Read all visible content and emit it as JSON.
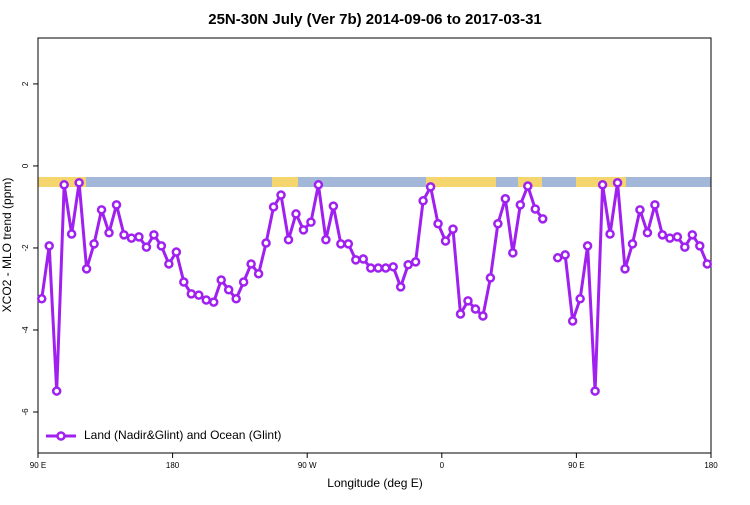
{
  "chart_data": {
    "type": "line",
    "title": "25N-30N July (Ver 7b)   2014-09-06 to 2017-03-31",
    "x_label": "Longitude (deg E)",
    "y_label": "XCO2 - MLO trend (ppm)",
    "xlim": [
      90,
      540
    ],
    "xticks": [
      {
        "value": 90,
        "label": "90 E"
      },
      180,
      {
        "value": 270,
        "label": "90 W"
      },
      {
        "value": 360,
        "label": "0"
      },
      {
        "value": 450,
        "label": "90 E"
      },
      {
        "value": 540,
        "label": "180"
      }
    ],
    "ylim": [
      -7,
      3.12
    ],
    "yticks": [
      -6,
      -4,
      -2,
      0,
      2
    ],
    "grid": false,
    "legend": "bottom-left",
    "x": [
      92.5,
      97.5,
      102.5,
      107.5,
      112.5,
      117.5,
      122.5,
      127.5,
      132.5,
      137.5,
      142.5,
      147.5,
      152.5,
      157.5,
      162.5,
      167.5,
      172.5,
      177.5,
      182.5,
      187.5,
      192.5,
      197.5,
      202.5,
      207.5,
      212.5,
      217.5,
      222.5,
      227.5,
      232.5,
      237.5,
      242.5,
      247.5,
      252.5,
      257.5,
      262.5,
      267.5,
      272.5,
      277.5,
      282.5,
      287.5,
      292.5,
      297.5,
      302.5,
      307.5,
      312.5,
      317.5,
      322.5,
      327.5,
      332.5,
      337.5,
      342.5,
      347.5,
      352.5,
      357.5,
      362.5,
      367.5,
      372.5,
      377.5,
      382.5,
      387.5,
      392.5,
      397.5,
      402.5,
      407.5,
      412.5,
      417.5,
      422.5,
      427.5,
      432.5,
      437.5,
      442.5,
      447.5,
      452.5,
      457.5,
      462.5,
      467.5,
      472.5,
      477.5,
      482.5,
      487.5,
      492.5,
      497.5,
      502.5,
      507.5,
      512.5,
      517.5,
      522.5,
      527.5,
      532.5,
      537.5
    ],
    "series": [
      {
        "name": "Land (Nadir&Glint) and Ocean (Glint)",
        "color": "#a020f0",
        "values": [
          -3.24,
          -1.95,
          -5.49,
          -0.46,
          -1.66,
          -0.41,
          -2.51,
          -1.9,
          -1.07,
          -1.63,
          -0.95,
          -1.68,
          -1.76,
          -1.73,
          -1.98,
          -1.68,
          -1.95,
          -2.39,
          -2.1,
          -2.83,
          -3.12,
          -3.15,
          -3.27,
          -3.32,
          -2.78,
          -3.02,
          -3.24,
          -2.83,
          -2.39,
          -2.63,
          -1.88,
          -1.0,
          -0.71,
          -1.8,
          -1.17,
          -1.56,
          -1.37,
          -0.46,
          -1.8,
          -0.98,
          -1.9,
          -1.9,
          -2.29,
          -2.27,
          -2.49,
          -2.49,
          -2.49,
          -2.46,
          -2.95,
          -2.41,
          -2.34,
          -0.85,
          -0.51,
          -1.41,
          -1.83,
          -1.54,
          -3.61,
          -3.29,
          -3.49,
          -3.66,
          -2.73,
          -1.41,
          -0.8,
          -2.12,
          -0.95,
          -0.49,
          -1.05,
          -1.29,
          null,
          -2.24,
          -2.17,
          -3.78,
          -3.24,
          -1.95,
          -5.49,
          -0.46,
          -1.66,
          -0.41,
          -2.51,
          -1.9,
          -1.07,
          -1.63,
          -0.95,
          -1.68,
          -1.76,
          -1.73,
          -1.98,
          -1.68,
          -1.95,
          -2.39
        ]
      }
    ]
  }
}
